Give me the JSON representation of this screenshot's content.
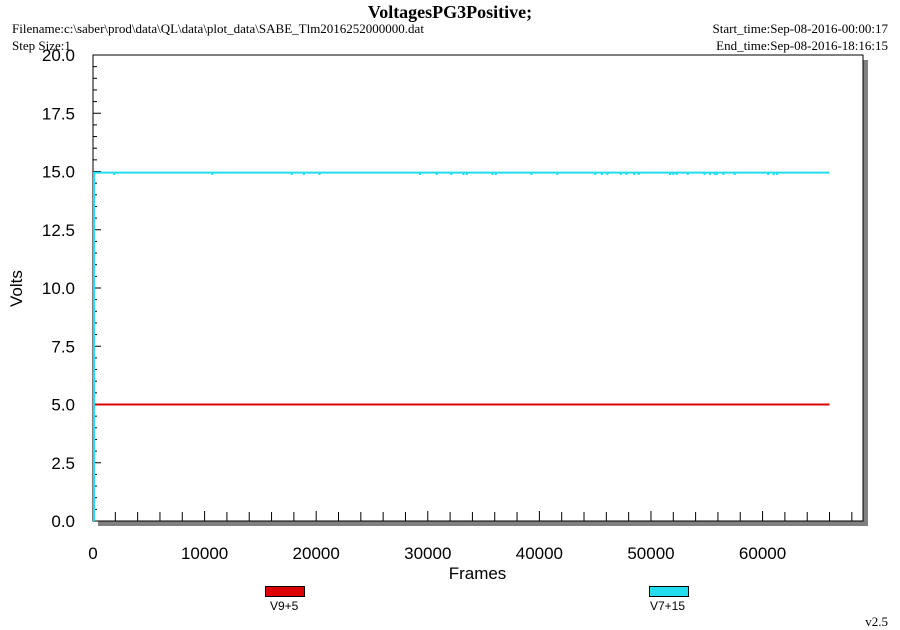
{
  "title": "VoltagesPG3Positive;",
  "filename": "Filename:c:\\saber\\prod\\data\\QL\\data\\plot_data\\SABE_Tlm2016252000000.dat",
  "step_size": "Step Size:1",
  "start_time": "Start_time:Sep-08-2016-00:00:17",
  "end_time": "End_time:Sep-08-2016-18:16:15",
  "version": "v2.5",
  "chart_data": {
    "type": "line",
    "title": "VoltagesPG3Positive;",
    "xlabel": "Frames",
    "ylabel": "Volts",
    "xlim": [
      0,
      69000
    ],
    "ylim": [
      0,
      20
    ],
    "x_ticks": [
      0,
      10000,
      20000,
      30000,
      40000,
      50000,
      60000
    ],
    "y_ticks": [
      "0.0",
      "2.5",
      "5.0",
      "7.5",
      "10.0",
      "12.5",
      "15.0",
      "17.5",
      "20.0"
    ],
    "grid": false,
    "legend_position": "bottom",
    "series": [
      {
        "name": "V9+5",
        "color": "#dd0000",
        "x": [
          0,
          66000
        ],
        "y": [
          5.0,
          5.0
        ]
      },
      {
        "name": "V7+15",
        "color": "#22ddee",
        "x": [
          0,
          66000
        ],
        "y": [
          14.95,
          14.95
        ],
        "dips": [
          1900,
          10700,
          17800,
          18900,
          20300,
          29300,
          30800,
          32100,
          33200,
          33500,
          35800,
          36100,
          39300,
          41600,
          45000,
          45600,
          46100,
          47300,
          47800,
          48500,
          48900,
          51700,
          52000,
          52300,
          53300,
          54800,
          55300,
          55700,
          55900,
          56500,
          57500,
          60500,
          61000,
          61300
        ],
        "dip_value": 14.85
      }
    ]
  }
}
